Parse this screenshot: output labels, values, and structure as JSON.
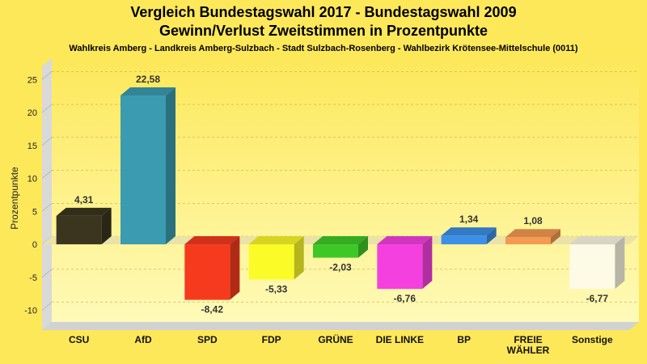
{
  "chart_data": {
    "type": "bar",
    "title": [
      "Vergleich Bundestagswahl 2017 - Bundestagswahl 2009",
      "Gewinn/Verlust Zweitstimmen in Prozentpunkte"
    ],
    "subtitle": "Wahlkreis Amberg - Landkreis Amberg-Sulzbach - Stadt Sulzbach-Rosenberg - Wahlbezirk Krötensee-Mittelschule (0011)",
    "ylabel": "Prozentpunkte",
    "xlabel": "",
    "ylim": [
      -13,
      27
    ],
    "yticks": [
      25,
      20,
      15,
      10,
      5,
      0,
      -5,
      -10
    ],
    "grid": true,
    "categories": [
      [
        "CSU"
      ],
      [
        "AfD"
      ],
      [
        "SPD"
      ],
      [
        "FDP"
      ],
      [
        "GRÜNE"
      ],
      [
        "DIE LINKE"
      ],
      [
        "BP"
      ],
      [
        "FREIE",
        "WÄHLER"
      ],
      [
        "Sonstige"
      ]
    ],
    "values": [
      4.31,
      22.58,
      -8.42,
      -5.33,
      -2.03,
      -6.76,
      1.34,
      1.08,
      -6.77
    ],
    "value_labels": [
      "4,31",
      "22,58",
      "-8,42",
      "-5,33",
      "-2,03",
      "-6,76",
      "1,34",
      "1,08",
      "-6,77"
    ],
    "colors": [
      "#3b3520",
      "#3b9bb0",
      "#f53a1e",
      "#fbfb28",
      "#3ec828",
      "#f540e0",
      "#3c8fe6",
      "#f59a50",
      "#fdfbe6"
    ]
  }
}
